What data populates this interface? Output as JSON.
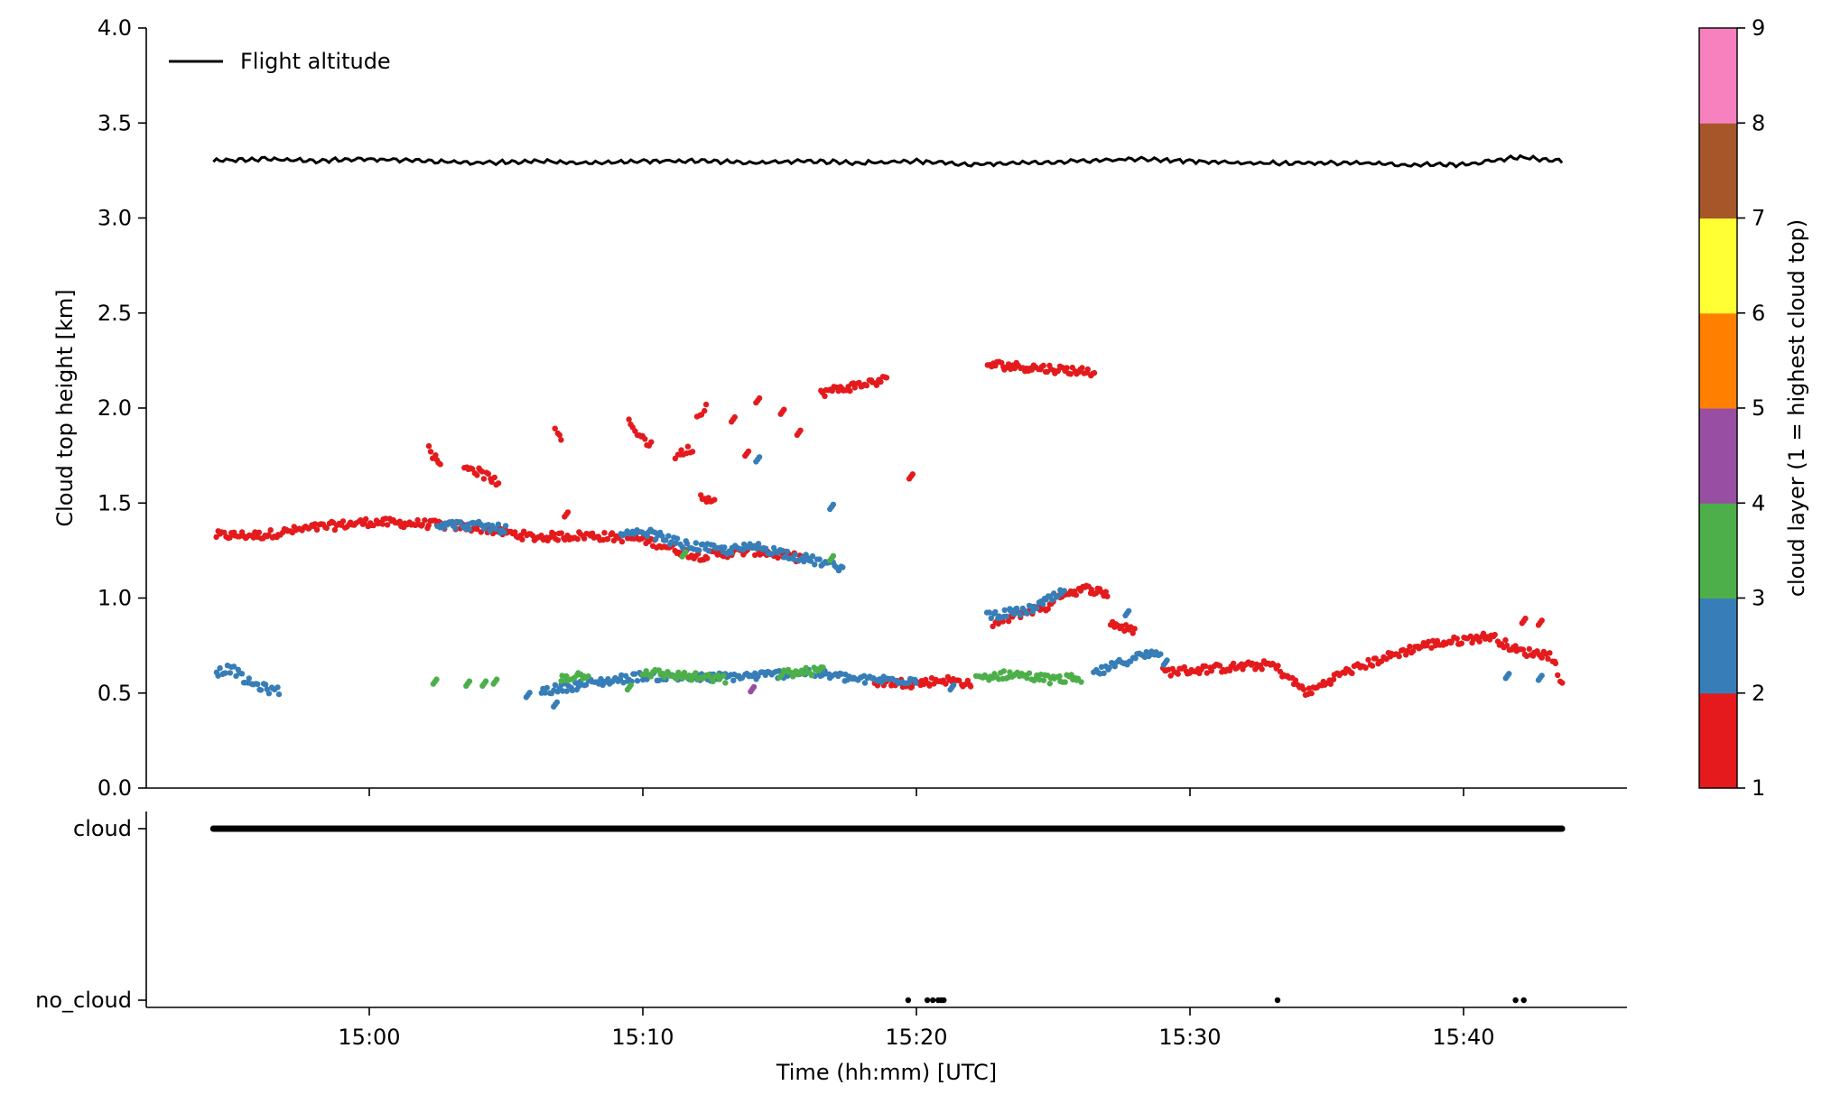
{
  "chart_data": [
    {
      "type": "scatter",
      "panel": "top",
      "ylabel": "Cloud top height [km]",
      "xlabel": "",
      "xlim": [
        "14:51:50",
        "15:46:00"
      ],
      "ylim": [
        0,
        4.0
      ],
      "yticks": [
        "0.0",
        "0.5",
        "1.0",
        "1.5",
        "2.0",
        "2.5",
        "3.0",
        "3.5",
        "4.0"
      ],
      "legend": {
        "placement": "top-left",
        "entries": [
          "Flight altitude"
        ]
      },
      "grid": false,
      "series": [
        {
          "name": "Flight altitude",
          "kind": "line",
          "color": "#000000",
          "x_minutes_after_1500": [
            -5.7,
            -4,
            -2,
            0,
            2,
            4,
            6,
            8,
            10,
            12,
            14,
            16,
            18,
            20,
            22,
            24,
            26,
            28,
            30,
            32,
            34,
            36,
            38,
            40,
            42,
            43.6
          ],
          "y": [
            3.3,
            3.31,
            3.3,
            3.31,
            3.3,
            3.29,
            3.3,
            3.29,
            3.3,
            3.3,
            3.29,
            3.3,
            3.29,
            3.3,
            3.28,
            3.29,
            3.3,
            3.31,
            3.3,
            3.29,
            3.29,
            3.29,
            3.28,
            3.28,
            3.32,
            3.3
          ]
        },
        {
          "name": "",
          "cloud_layer": 1,
          "color": "#e41a1c",
          "segments": [
            {
              "x": [
                -5.6,
                -4,
                -2,
                0,
                2,
                4,
                6,
                8,
                10,
                12,
                14,
                15.8
              ],
              "y": [
                1.33,
                1.33,
                1.37,
                1.4,
                1.39,
                1.37,
                1.32,
                1.33,
                1.31,
                1.22,
                1.25,
                1.21
              ]
            },
            {
              "x": [
                22.8,
                24,
                25
              ],
              "y": [
                0.86,
                0.93,
                0.96
              ]
            },
            {
              "x": [
                25.2,
                26.3,
                27.0
              ],
              "y": [
                1.02,
                1.05,
                1.02
              ]
            },
            {
              "x": [
                27.1,
                28.0
              ],
              "y": [
                0.87,
                0.82
              ]
            },
            {
              "x": [
                18.5,
                20,
                21,
                22
              ],
              "y": [
                0.56,
                0.55,
                0.57,
                0.55
              ]
            },
            {
              "x": [
                29,
                31,
                33,
                34.3,
                35.5,
                37,
                38.5,
                40,
                41,
                42,
                43.2,
                43.6
              ],
              "y": [
                0.61,
                0.63,
                0.65,
                0.5,
                0.6,
                0.68,
                0.75,
                0.78,
                0.8,
                0.72,
                0.7,
                0.56
              ]
            },
            {
              "x": [
                2.2,
                2.6
              ],
              "y": [
                1.78,
                1.7
              ]
            },
            {
              "x": [
                3.5,
                4.7
              ],
              "y": [
                1.7,
                1.61
              ]
            },
            {
              "x": [
                6.8,
                7.0
              ],
              "y": [
                1.87,
                1.84
              ]
            },
            {
              "x": [
                9.5,
                10.3
              ],
              "y": [
                1.92,
                1.8
              ]
            },
            {
              "x": [
                11.2,
                11.8
              ],
              "y": [
                1.75,
                1.79
              ]
            },
            {
              "x": [
                12.0,
                12.3
              ],
              "y": [
                1.95,
                2.01
              ]
            },
            {
              "x": [
                12.1,
                12.6
              ],
              "y": [
                1.55,
                1.5
              ]
            },
            {
              "x": [
                16.5,
                18.9
              ],
              "y": [
                2.08,
                2.15
              ]
            },
            {
              "x": [
                22.6,
                26.5
              ],
              "y": [
                2.23,
                2.19
              ]
            }
          ],
          "points": [
            {
              "x": 7.2,
              "y": 1.44
            },
            {
              "x": 13.3,
              "y": 1.94
            },
            {
              "x": 14.2,
              "y": 2.04
            },
            {
              "x": 15.1,
              "y": 1.98
            },
            {
              "x": 15.7,
              "y": 1.87
            },
            {
              "x": 13.8,
              "y": 1.76
            },
            {
              "x": 19.8,
              "y": 1.64
            },
            {
              "x": 42.2,
              "y": 0.88
            },
            {
              "x": 42.8,
              "y": 0.87
            }
          ]
        },
        {
          "name": "",
          "cloud_layer": 2,
          "color": "#377eb8",
          "segments": [
            {
              "x": [
                -5.6,
                -5,
                -4.5,
                -3.7,
                -3.3
              ],
              "y": [
                0.61,
                0.63,
                0.56,
                0.52,
                0.51
              ]
            },
            {
              "x": [
                6.3,
                8,
                10,
                12,
                14,
                16,
                18,
                20
              ],
              "y": [
                0.51,
                0.55,
                0.59,
                0.58,
                0.59,
                0.61,
                0.57,
                0.57
              ]
            },
            {
              "x": [
                2.5,
                4,
                5.0
              ],
              "y": [
                1.39,
                1.38,
                1.36
              ]
            },
            {
              "x": [
                9.2,
                10.3,
                11.5,
                13,
                14.2,
                17.3
              ],
              "y": [
                1.33,
                1.34,
                1.28,
                1.25,
                1.27,
                1.16
              ]
            },
            {
              "x": [
                22.6,
                24,
                25.4
              ],
              "y": [
                0.91,
                0.93,
                1.03
              ]
            },
            {
              "x": [
                26.5,
                28.0,
                28.9
              ],
              "y": [
                0.6,
                0.69,
                0.71
              ]
            }
          ],
          "points": [
            {
              "x": 16.9,
              "y": 1.48
            },
            {
              "x": 14.2,
              "y": 1.73
            },
            {
              "x": 5.8,
              "y": 0.49
            },
            {
              "x": 6.8,
              "y": 0.44
            },
            {
              "x": 21.3,
              "y": 0.53
            },
            {
              "x": 41.6,
              "y": 0.59
            },
            {
              "x": 42.8,
              "y": 0.58
            },
            {
              "x": 27.7,
              "y": 0.92
            },
            {
              "x": 29.1,
              "y": 0.66
            }
          ]
        },
        {
          "name": "",
          "cloud_layer": 3,
          "color": "#4daf4a",
          "segments": [
            {
              "x": [
                7.0,
                8.0
              ],
              "y": [
                0.58,
                0.6
              ]
            },
            {
              "x": [
                10.0,
                11.5,
                13.0
              ],
              "y": [
                0.61,
                0.59,
                0.57
              ]
            },
            {
              "x": [
                15.0,
                16.6
              ],
              "y": [
                0.6,
                0.62
              ]
            },
            {
              "x": [
                22.2,
                23.5,
                25.0,
                26.0
              ],
              "y": [
                0.58,
                0.6,
                0.57,
                0.58
              ]
            }
          ],
          "points": [
            {
              "x": 2.4,
              "y": 0.56
            },
            {
              "x": 3.6,
              "y": 0.55
            },
            {
              "x": 4.2,
              "y": 0.55
            },
            {
              "x": 4.6,
              "y": 0.56
            },
            {
              "x": 9.5,
              "y": 0.53
            },
            {
              "x": 11.5,
              "y": 1.23
            },
            {
              "x": 16.9,
              "y": 1.21
            }
          ]
        },
        {
          "name": "",
          "cloud_layer": 4,
          "color": "#984ea3",
          "points": [
            {
              "x": 14.0,
              "y": 0.52
            }
          ]
        }
      ],
      "colorbar": {
        "label": "cloud layer (1 = highest cloud top)",
        "ticks": [
          "1",
          "2",
          "3",
          "4",
          "5",
          "6",
          "7",
          "8",
          "9"
        ],
        "colors": [
          "#e41a1c",
          "#377eb8",
          "#4daf4a",
          "#984ea3",
          "#ff7f00",
          "#ffff33",
          "#a65628",
          "#f781bf",
          "#999999"
        ]
      }
    },
    {
      "type": "scatter",
      "panel": "bottom",
      "xlabel": "Time (hh:mm) [UTC]",
      "ylabel": "",
      "xticks": [
        "15:00",
        "15:10",
        "15:20",
        "15:30",
        "15:40"
      ],
      "xtick_values_minutes_after_1500": [
        0,
        10,
        20,
        30,
        40
      ],
      "ycategories": [
        "no_cloud",
        "cloud"
      ],
      "series": [
        {
          "category": "cloud",
          "x_range_minutes_after_1500": [
            -5.7,
            43.6
          ]
        },
        {
          "category": "no_cloud",
          "x_minutes_after_1500": [
            19.7,
            20.4,
            20.6,
            20.8,
            20.9,
            21.0,
            33.2,
            41.9,
            42.2
          ]
        }
      ]
    }
  ]
}
